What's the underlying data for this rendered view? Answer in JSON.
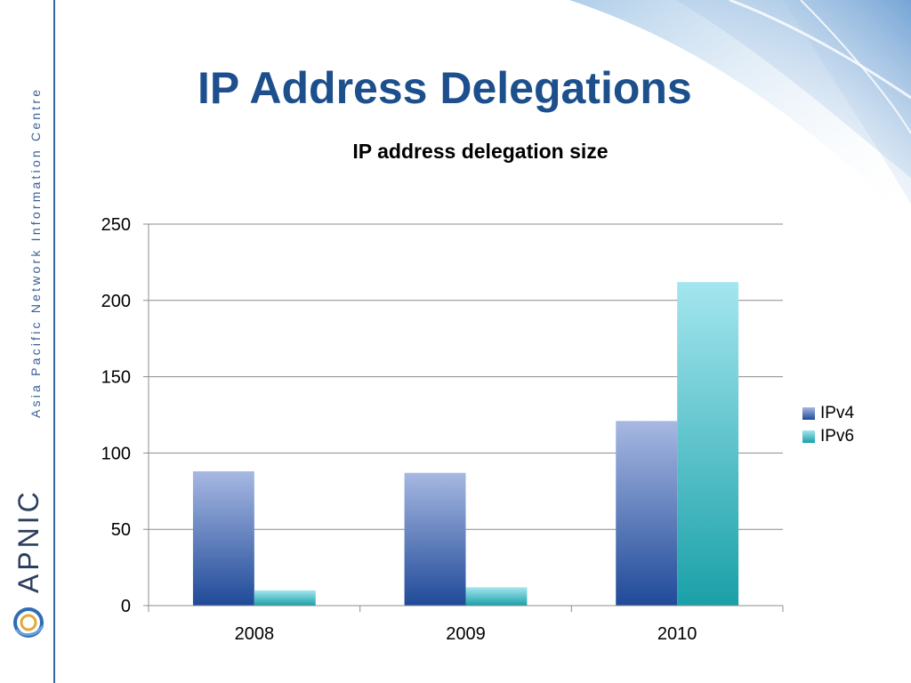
{
  "slide": {
    "title": "IP Address Delegations",
    "sidebar_text": "Asia Pacific Network Information Centre",
    "brand": "APNIC"
  },
  "colors": {
    "ipv4_top": "#a7b8e2",
    "ipv4_bottom": "#1f4a98",
    "ipv6_top": "#a4e6ef",
    "ipv6_bottom": "#1aa0a8",
    "title": "#1c4f8c",
    "grid": "#8c8c8c"
  },
  "chart_data": {
    "type": "bar",
    "title": "IP address delegation size",
    "categories": [
      "2008",
      "2009",
      "2010"
    ],
    "series": [
      {
        "name": "IPv4",
        "values": [
          88,
          87,
          121
        ]
      },
      {
        "name": "IPv6",
        "values": [
          10,
          12,
          212
        ]
      }
    ],
    "ylim": [
      0,
      250
    ],
    "yticks": [
      0,
      50,
      100,
      150,
      200,
      250
    ],
    "grid": true,
    "legend": "right"
  }
}
